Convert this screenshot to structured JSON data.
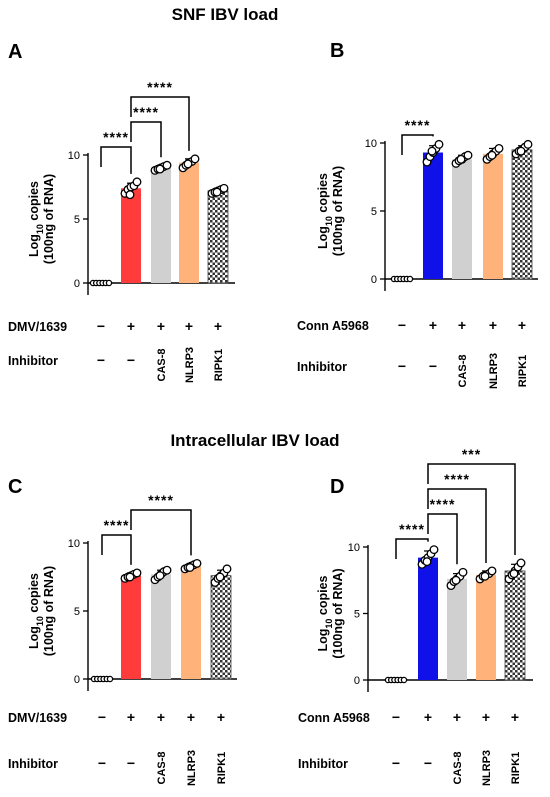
{
  "section_titles": [
    "SNF IBV  load",
    "Intracellular IBV  load"
  ],
  "chart_data": [
    {
      "panel": "A",
      "type": "bar",
      "ylabel_line1": "Log",
      "ylabel_sub": "10",
      "ylabel_line1_rest": " copies",
      "ylabel_line2": "(100ng of RNA)",
      "ylim": [
        0,
        10
      ],
      "yticks": [
        "0",
        "5",
        "10"
      ],
      "virus_label": "DMV/1639",
      "virus_row": [
        "−",
        "+",
        "+",
        "+",
        "+"
      ],
      "inhibitor_label": "Inhibitor",
      "inhibitor_row": [
        "−",
        "−",
        "CAS-8",
        "NLRP3",
        "RIPK1"
      ],
      "values": [
        0,
        7.4,
        9.0,
        9.4,
        7.2
      ],
      "errors": [
        0,
        0.4,
        0.2,
        0.3,
        0.2
      ],
      "points": [
        [
          0,
          0,
          0,
          0,
          0,
          0
        ],
        [
          7.0,
          7.3,
          7.5,
          7.6,
          7.9,
          6.9
        ],
        [
          8.8,
          8.9,
          9.0,
          9.1,
          9.2,
          8.9
        ],
        [
          9.0,
          9.2,
          9.4,
          9.5,
          9.7,
          9.3
        ],
        [
          7.0,
          7.1,
          7.2,
          7.3,
          7.4,
          7.1
        ]
      ],
      "fills": [
        "#ffffff",
        "#ff3b3b",
        "#d0d0d0",
        "#ffb27a",
        "checker"
      ],
      "significance": [
        {
          "from": 0,
          "to": 1,
          "label": "****"
        },
        {
          "from": 1,
          "to": 2,
          "label": "****"
        },
        {
          "from": 1,
          "to": 3,
          "label": "****"
        }
      ]
    },
    {
      "panel": "B",
      "type": "bar",
      "ylabel_line1": "Log",
      "ylabel_sub": "10",
      "ylabel_line1_rest": " copies",
      "ylabel_line2": "(100ng of RNA)",
      "ylim": [
        0,
        10
      ],
      "yticks": [
        "0",
        "5",
        "10"
      ],
      "virus_label": "Conn A5968",
      "virus_row": [
        "−",
        "+",
        "+",
        "+",
        "+"
      ],
      "inhibitor_label": "Inhibitor",
      "inhibitor_row": [
        "−",
        "−",
        "CAS-8",
        "NLRP3",
        "RIPK1"
      ],
      "values": [
        0,
        9.3,
        8.8,
        9.2,
        9.5
      ],
      "errors": [
        0,
        0.5,
        0.3,
        0.4,
        0.3
      ],
      "points": [
        [
          0,
          0,
          0,
          0,
          0,
          0
        ],
        [
          8.6,
          9.0,
          9.3,
          9.6,
          9.9,
          9.4
        ],
        [
          8.5,
          8.7,
          8.8,
          9.0,
          9.1,
          8.8
        ],
        [
          8.8,
          9.0,
          9.2,
          9.4,
          9.6,
          9.1
        ],
        [
          9.2,
          9.4,
          9.5,
          9.7,
          9.9,
          9.4
        ]
      ],
      "fills": [
        "#ffffff",
        "#1010e8",
        "#d0d0d0",
        "#ffb27a",
        "checker"
      ],
      "significance": [
        {
          "from": 0,
          "to": 1,
          "label": "****"
        }
      ]
    },
    {
      "panel": "C",
      "type": "bar",
      "ylabel_line1": "Log",
      "ylabel_sub": "10",
      "ylabel_line1_rest": " copies",
      "ylabel_line2": "(100ng of RNA)",
      "ylim": [
        0,
        10
      ],
      "yticks": [
        "0",
        "5",
        "10"
      ],
      "virus_label": "DMV/1639",
      "virus_row": [
        "−",
        "+",
        "+",
        "+",
        "+"
      ],
      "inhibitor_label": "Inhibitor",
      "inhibitor_row": [
        "−",
        "−",
        "CAS-8",
        "NLRP3",
        "RIPK1"
      ],
      "values": [
        0,
        7.6,
        7.7,
        8.3,
        7.6
      ],
      "errors": [
        0,
        0.2,
        0.3,
        0.2,
        0.4
      ],
      "points": [
        [
          0,
          0,
          0,
          0,
          0,
          0
        ],
        [
          7.4,
          7.5,
          7.6,
          7.7,
          7.8,
          7.5
        ],
        [
          7.3,
          7.5,
          7.7,
          7.9,
          8.0,
          7.6
        ],
        [
          8.1,
          8.2,
          8.3,
          8.4,
          8.5,
          8.2
        ],
        [
          7.1,
          7.4,
          7.6,
          7.8,
          8.1,
          7.5
        ]
      ],
      "fills": [
        "#ffffff",
        "#ff3b3b",
        "#d0d0d0",
        "#ffb27a",
        "checker"
      ],
      "significance": [
        {
          "from": 0,
          "to": 1,
          "label": "****"
        },
        {
          "from": 1,
          "to": 3,
          "label": "****"
        }
      ]
    },
    {
      "panel": "D",
      "type": "bar",
      "ylabel_line1": "Log",
      "ylabel_sub": "10",
      "ylabel_line1_rest": " copies",
      "ylabel_line2": "(100ng of RNA)",
      "ylim": [
        0,
        10
      ],
      "yticks": [
        "0",
        "5",
        "10"
      ],
      "virus_label": "Conn A5968",
      "virus_row": [
        "−",
        "+",
        "+",
        "+",
        "+"
      ],
      "inhibitor_label": "Inhibitor",
      "inhibitor_row": [
        "−",
        "−",
        "CAS-8",
        "NLRP3",
        "RIPK1"
      ],
      "values": [
        0,
        9.2,
        7.6,
        7.9,
        8.2
      ],
      "errors": [
        0,
        0.5,
        0.4,
        0.3,
        0.5
      ],
      "points": [
        [
          0,
          0,
          0,
          0,
          0,
          0
        ],
        [
          8.7,
          9.0,
          9.2,
          9.5,
          9.8,
          8.9
        ],
        [
          7.1,
          7.4,
          7.6,
          7.8,
          8.1,
          7.5
        ],
        [
          7.6,
          7.8,
          7.9,
          8.0,
          8.2,
          7.8
        ],
        [
          7.6,
          7.9,
          8.2,
          8.5,
          8.8,
          8.0
        ]
      ],
      "fills": [
        "#ffffff",
        "#1010e8",
        "#d0d0d0",
        "#ffb27a",
        "checker"
      ],
      "significance": [
        {
          "from": 0,
          "to": 1,
          "label": "****"
        },
        {
          "from": 1,
          "to": 2,
          "label": "****"
        },
        {
          "from": 1,
          "to": 3,
          "label": "****"
        },
        {
          "from": 1,
          "to": 4,
          "label": "***"
        }
      ]
    }
  ]
}
